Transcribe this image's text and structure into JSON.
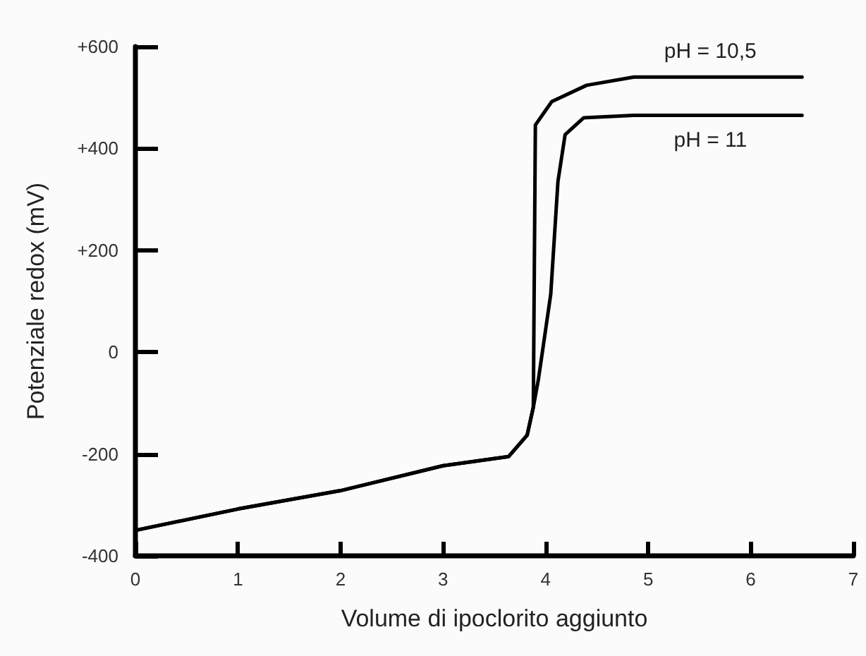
{
  "chart_data": {
    "type": "line",
    "xlabel": "Volume di ipoclorito aggiunto",
    "ylabel": "Potenziale redox (mV)",
    "series": [
      {
        "name": "pH = 10,5",
        "color": "#000000",
        "x": [
          0,
          1,
          2,
          3,
          3.64,
          3.82,
          3.88,
          3.9,
          4.06,
          4.4,
          4.86,
          6.5
        ],
        "values": [
          -350,
          -308,
          -272,
          -223,
          -205,
          -163,
          -108,
          446,
          492,
          524,
          540,
          540
        ]
      },
      {
        "name": "pH = 11",
        "color": "#000000",
        "x": [
          0,
          1,
          2,
          3,
          3.64,
          3.82,
          3.88,
          3.93,
          4.05,
          4.12,
          4.19,
          4.37,
          4.86,
          6.5
        ],
        "values": [
          -350,
          -308,
          -272,
          -223,
          -205,
          -163,
          -108,
          -53,
          114,
          335,
          427,
          460,
          465,
          465
        ]
      }
    ],
    "xlim": [
      0,
      7
    ],
    "xticks": [
      0,
      1,
      2,
      3,
      4,
      5,
      6,
      7
    ],
    "ylim": [
      -400,
      600
    ],
    "yticks": [
      -400,
      -200,
      0,
      {
        "value": 200,
        "label": "+200"
      },
      {
        "value": 400,
        "label": "+400"
      },
      {
        "value": 600,
        "label": "+600"
      }
    ],
    "grid": false,
    "legend": false,
    "marker": "none",
    "line_style": "solid"
  }
}
